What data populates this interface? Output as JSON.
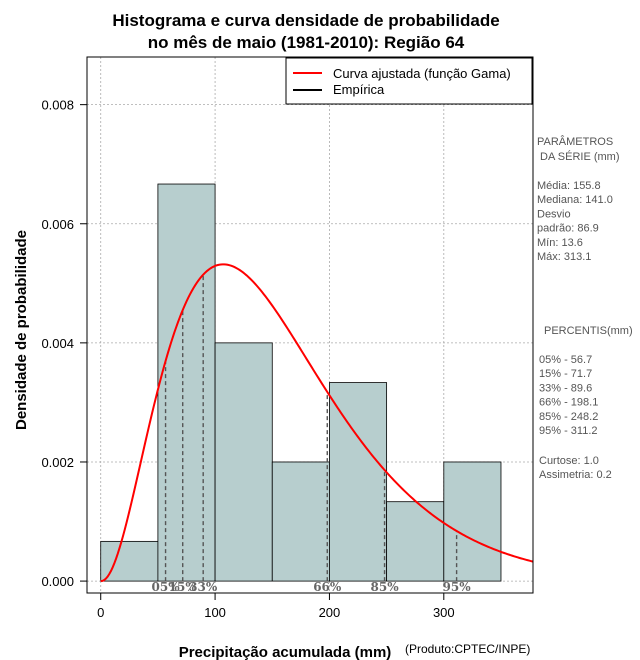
{
  "chart_data": {
    "type": "bar",
    "title_lines": [
      "Histograma e curva densidade de probabilidade",
      "no mês de maio (1981-2010): Região 64"
    ],
    "xlabel": "Precipitação acumulada (mm)",
    "ylabel": "Densidade de probabilidade",
    "credit": "(Produto:CPTEC/INPE)",
    "xlim": [
      -12,
      378
    ],
    "ylim": [
      -0.0002,
      0.0088
    ],
    "x_ticks": [
      0,
      100,
      200,
      300
    ],
    "x_tick_labels": [
      "0",
      "100",
      "200",
      "300"
    ],
    "y_ticks": [
      0.0,
      0.002,
      0.004,
      0.006,
      0.008
    ],
    "y_tick_labels": [
      "0.000",
      "0.002",
      "0.004",
      "0.006",
      "0.008"
    ],
    "grid": true,
    "histogram": {
      "bin_edges": [
        0,
        50,
        100,
        150,
        200,
        250,
        300,
        350
      ],
      "values": [
        0.000667,
        0.006667,
        0.004,
        0.002,
        0.003333,
        0.001333,
        0.002
      ]
    },
    "gamma_fit": {
      "shape": 3.2,
      "scale": 48.7,
      "x_max": 378,
      "color": "#ff0000"
    },
    "legend": {
      "position": "top-right",
      "entries": [
        {
          "label": "Curva ajustada (função Gama)",
          "color": "#ff0000"
        },
        {
          "label": "Empírica",
          "color": "#000000"
        }
      ]
    },
    "percentile_markers": [
      {
        "x": 56.7,
        "label": "05%"
      },
      {
        "x": 71.7,
        "label": "15%"
      },
      {
        "x": 89.6,
        "label": "33%"
      },
      {
        "x": 198.1,
        "label": "66%"
      },
      {
        "x": 248.2,
        "label": "85%"
      },
      {
        "x": 311.2,
        "label": "95%"
      }
    ],
    "colors": {
      "bar_fill": "#b7cece",
      "bar_stroke": "#000000",
      "grid": "#aaaaaa",
      "percentile_line": "#555555"
    }
  },
  "side_panel": {
    "parameters_title_lines": [
      "PARÂMETROS",
      " DA SÉRIE (mm)"
    ],
    "parameters_lines": [
      "Média:  155.8",
      "Mediana:  141.0",
      "Desvio",
      "padrão:  86.9",
      "Mín:  13.6",
      "Máx:  313.1"
    ],
    "percentis_title": "PERCENTIS(mm)",
    "percentis_lines": [
      "05% -  56.7",
      "15% -  71.7",
      "33% -  89.6",
      "66% -  198.1",
      "85% -  248.2",
      "95% -  311.2"
    ],
    "stats_lines": [
      "Curtose:  1.0",
      "Assimetria:  0.2"
    ]
  }
}
